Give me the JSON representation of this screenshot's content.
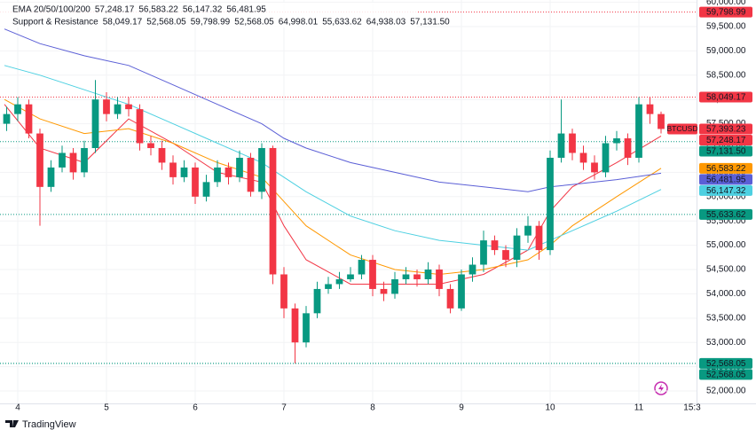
{
  "chart_data": {
    "type": "candlestick",
    "color_up": "#089981",
    "color_down": "#f23645",
    "x": [
      3.875,
      4,
      4.125,
      4.25,
      4.375,
      4.5,
      4.625,
      4.75,
      4.875,
      5,
      5.125,
      5.25,
      5.375,
      5.5,
      5.625,
      5.75,
      5.875,
      6,
      6.125,
      6.25,
      6.375,
      6.5,
      6.625,
      6.75,
      6.875,
      7,
      7.125,
      7.25,
      7.375,
      7.5,
      7.625,
      7.75,
      7.875,
      8,
      8.125,
      8.25,
      8.375,
      8.5,
      8.625,
      8.75,
      8.875,
      9,
      9.125,
      9.25,
      9.375,
      9.5,
      9.625,
      9.75,
      9.875,
      10,
      10.125,
      10.25,
      10.375,
      10.5,
      10.625,
      10.75,
      10.875,
      11,
      11.125,
      11.25
    ],
    "open": [
      57500,
      57700,
      57900,
      57300,
      56200,
      56600,
      56900,
      56500,
      57000,
      58000,
      57700,
      57900,
      57800,
      57100,
      57000,
      56700,
      56400,
      56600,
      56000,
      56300,
      56600,
      56400,
      56800,
      56100,
      57000,
      54400,
      53700,
      53000,
      53600,
      54100,
      54200,
      54300,
      54400,
      54700,
      54100,
      54000,
      54300,
      54400,
      54300,
      54500,
      54100,
      53700,
      54400,
      54600,
      55100,
      54900,
      54700,
      55200,
      55400,
      54900,
      56800,
      57300,
      56900,
      56700,
      56500,
      57100,
      57200,
      56800,
      57900,
      57700
    ],
    "high": [
      57850,
      58050,
      58000,
      57400,
      56750,
      57050,
      57000,
      57150,
      58400,
      58150,
      58050,
      58050,
      57900,
      57250,
      57150,
      56850,
      56750,
      56700,
      56450,
      56750,
      56700,
      56950,
      56900,
      57100,
      57050,
      54550,
      53800,
      53750,
      54250,
      54350,
      54450,
      54550,
      54800,
      54800,
      54250,
      54450,
      54550,
      54500,
      54650,
      54600,
      54200,
      54500,
      54750,
      55300,
      55200,
      55000,
      55350,
      55600,
      55500,
      56950,
      58000,
      57400,
      57050,
      56850,
      57250,
      57350,
      57300,
      58050,
      58050,
      57750
    ],
    "low": [
      57350,
      57550,
      57200,
      55400,
      56100,
      56500,
      56350,
      56400,
      56900,
      57550,
      57600,
      57650,
      56950,
      56850,
      56550,
      56250,
      56300,
      55850,
      55900,
      56200,
      56250,
      56300,
      56000,
      55950,
      54200,
      53500,
      52568.05,
      52900,
      53500,
      54000,
      54100,
      54250,
      54300,
      53950,
      53850,
      53900,
      54200,
      54150,
      54200,
      53950,
      53600,
      53650,
      54250,
      54450,
      54800,
      54550,
      54550,
      55050,
      54700,
      54800,
      56700,
      56750,
      56550,
      56350,
      56400,
      56950,
      56650,
      56700,
      57500,
      57300
    ],
    "close": [
      57700,
      57900,
      57300,
      56200,
      56600,
      56900,
      56500,
      57000,
      58000,
      57700,
      57900,
      57800,
      57100,
      57000,
      56700,
      56400,
      56600,
      56000,
      56300,
      56600,
      56400,
      56800,
      56100,
      57000,
      54400,
      53700,
      53000,
      53600,
      54100,
      54200,
      54300,
      54400,
      54700,
      54100,
      54000,
      54300,
      54400,
      54300,
      54500,
      54100,
      53700,
      54400,
      54600,
      55100,
      54900,
      54700,
      55200,
      55400,
      54900,
      56800,
      57300,
      56900,
      56700,
      56500,
      57100,
      57200,
      56800,
      57900,
      57700,
      57393.23
    ],
    "last": {
      "symbol": "BTCUSD",
      "value": 57393.23,
      "value_label": "57,393.23",
      "color": "#f23645"
    },
    "xlim": [
      3.8,
      11.65
    ],
    "xticks": [
      4,
      5,
      6,
      7,
      8,
      9,
      10,
      11,
      {
        "value": 11.6,
        "label": "15:3"
      }
    ],
    "ylim": [
      51745,
      60047
    ],
    "yticks": [
      {
        "value": 52000,
        "label": "52,000.00"
      },
      {
        "value": 52500,
        "label": "52,500.00"
      },
      {
        "value": 53000,
        "label": "53,000.00"
      },
      {
        "value": 53500,
        "label": "53,500.00"
      },
      {
        "value": 54000,
        "label": "54,000.00"
      },
      {
        "value": 54500,
        "label": "54,500.00"
      },
      {
        "value": 55000,
        "label": "55,000.00"
      },
      {
        "value": 55500,
        "label": "55,500.00"
      },
      {
        "value": 56000,
        "label": "56,000.00"
      },
      {
        "value": 56500,
        "label": "56,500.00"
      },
      {
        "value": 57000,
        "label": "57,000.00"
      },
      {
        "value": 57500,
        "label": "57,500.00"
      },
      {
        "value": 58000,
        "label": "58,000.00"
      },
      {
        "value": 58500,
        "label": "58,500.00"
      },
      {
        "value": 59000,
        "label": "59,000.00"
      },
      {
        "value": 59500,
        "label": "59,500.00"
      },
      {
        "value": 60000,
        "label": "60,000.00"
      }
    ],
    "ema": {
      "name": "EMA 20/50/100/200",
      "x": [
        3.85,
        4.25,
        4.75,
        5.25,
        5.75,
        6.25,
        6.75,
        7,
        7.25,
        7.75,
        8.25,
        8.75,
        9.25,
        9.75,
        10,
        10.25,
        10.75,
        11.25
      ],
      "series": [
        {
          "color": "#f23645",
          "value": 57248.17,
          "value_label": "57,248.17",
          "values": [
            57900,
            57000,
            56700,
            57600,
            57100,
            56500,
            56300,
            55400,
            54700,
            54200,
            54200,
            54200,
            54400,
            54900,
            55700,
            56200,
            56700,
            57248.17
          ]
        },
        {
          "color": "#ff9800",
          "value": 56583.22,
          "value_label": "56,583.22",
          "values": [
            58000,
            57600,
            57300,
            57400,
            57100,
            56700,
            56400,
            55900,
            55400,
            54800,
            54500,
            54400,
            54500,
            54700,
            55000,
            55400,
            56000,
            56583.22
          ]
        },
        {
          "color": "#4dd0e1",
          "value": 56147.32,
          "value_label": "56,147.32",
          "values": [
            58700,
            58500,
            58200,
            57900,
            57500,
            57100,
            56700,
            56400,
            56100,
            55600,
            55300,
            55100,
            55000,
            54900,
            55100,
            55300,
            55700,
            56147.32
          ]
        },
        {
          "color": "#5b5fd6",
          "value": 56481.95,
          "value_label": "56,481.95",
          "values": [
            59450,
            59150,
            58900,
            58700,
            58300,
            57900,
            57500,
            57200,
            57000,
            56700,
            56500,
            56300,
            56200,
            56100,
            56200,
            56250,
            56350,
            56481.95
          ]
        }
      ]
    },
    "levels": {
      "name": "Support & Resistance",
      "values": [
        58049.17,
        52568.05,
        59798.99,
        52568.05,
        64998.01,
        55633.62,
        64938.03,
        57131.5
      ],
      "value_labels": [
        "58,049.17",
        "52,568.05",
        "59,798.99",
        "52,568.05",
        "64,998.01",
        "55,633.62",
        "64,938.03",
        "57,131.50"
      ],
      "colors": [
        "#f23645",
        "#089981",
        "#f23645",
        "#089981",
        "#f23645",
        "#089981",
        "#f23645",
        "#089981"
      ]
    },
    "watermark": "TradingView"
  }
}
